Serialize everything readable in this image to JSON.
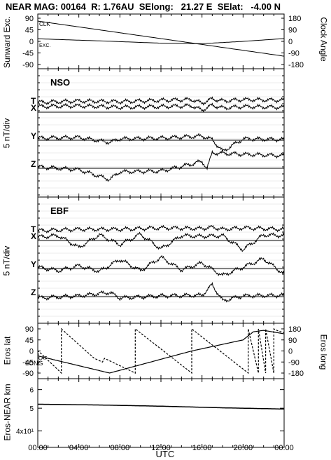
{
  "header": {
    "title": "NEAR MAG: 00164  R: 1.76AU  SElong:   21.27 E  SElat:   -4.00 N"
  },
  "x_axis": {
    "label": "UTC",
    "ticks": [
      "00:00",
      "04:00",
      "08:00",
      "12:00",
      "16:00",
      "20:00",
      "00:00"
    ]
  },
  "chart_data": [
    {
      "type": "line",
      "panel": "angles",
      "ylabel_left": "Sunward Exc.",
      "ylabel_right": "Clock Angle",
      "left_ticks": [
        "90",
        "45",
        "0",
        "-45",
        "-90"
      ],
      "right_ticks": [
        "180",
        "90",
        "0",
        "-90",
        "-180"
      ],
      "ylim_left": [
        -90,
        90
      ],
      "ylim_right": [
        -180,
        180
      ],
      "annotations": [
        "CLK",
        "EXC."
      ],
      "series": [
        {
          "name": "CLK",
          "x": [
            0,
            24
          ],
          "y": [
            158,
            -115
          ]
        },
        {
          "name": "EXC.",
          "x": [
            0,
            6,
            12,
            16,
            20,
            24
          ],
          "y": [
            10,
            2,
            -7,
            -9,
            0,
            11
          ]
        }
      ]
    },
    {
      "type": "line",
      "panel": "NSO",
      "panel_label": "NSO",
      "ylabel": "5 nT/div",
      "grid": true,
      "series": [
        {
          "name": "T",
          "x": [
            0,
            4,
            8,
            12,
            15,
            16,
            17,
            18,
            20,
            24
          ],
          "y": [
            1.4,
            1.6,
            1.5,
            1.7,
            1.8,
            1.3,
            1.9,
            1.6,
            1.8,
            1.7
          ]
        },
        {
          "name": "X",
          "x": [
            0,
            4,
            8,
            12,
            15,
            16,
            17,
            18,
            20,
            24
          ],
          "y": [
            0.8,
            0.9,
            0.7,
            0.8,
            0.9,
            0.3,
            1.0,
            0.6,
            0.8,
            0.7
          ]
        },
        {
          "name": "Y",
          "x": [
            0,
            4,
            7,
            8,
            12,
            16,
            17,
            18,
            20,
            24
          ],
          "y": [
            0.3,
            0.4,
            -0.3,
            0.2,
            0.3,
            0.6,
            0.1,
            -1.6,
            0.2,
            0.1
          ]
        },
        {
          "name": "Z",
          "x": [
            0,
            4,
            7,
            8,
            12,
            15,
            16,
            16.5,
            17,
            20,
            24
          ],
          "y": [
            0.2,
            -0.2,
            -1.6,
            -0.5,
            -0.4,
            0.6,
            1.0,
            0.0,
            2.2,
            2.0,
            1.8
          ]
        }
      ]
    },
    {
      "type": "line",
      "panel": "EBF",
      "panel_label": "EBF",
      "ylabel": "5 nT/div",
      "grid": true,
      "series": [
        {
          "name": "T",
          "x": [
            0,
            4,
            8,
            12,
            16,
            17,
            18,
            20,
            24
          ],
          "y": [
            1.4,
            1.6,
            1.6,
            1.8,
            1.7,
            1.9,
            1.6,
            1.8,
            1.6
          ]
        },
        {
          "name": "X",
          "x": [
            0,
            2,
            4,
            6,
            8,
            10,
            12,
            14,
            16,
            18,
            20,
            22,
            24
          ],
          "y": [
            0.5,
            0.7,
            -1.0,
            0.8,
            -0.6,
            0.9,
            -1.2,
            0.7,
            0.6,
            0.7,
            -1.3,
            0.8,
            0.7
          ]
        },
        {
          "name": "Y",
          "x": [
            0,
            2,
            4,
            6,
            8,
            10,
            12,
            14,
            16,
            18,
            20,
            22,
            24
          ],
          "y": [
            0.2,
            -0.3,
            0.4,
            -0.4,
            1.3,
            -0.3,
            1.6,
            -0.2,
            0.8,
            -1.0,
            0.2,
            1.4,
            -0.8
          ]
        },
        {
          "name": "Z",
          "x": [
            0,
            4,
            7,
            8,
            12,
            16,
            17,
            18,
            20,
            24
          ],
          "y": [
            -0.2,
            0.1,
            0.6,
            -0.2,
            0.1,
            0.2,
            1.7,
            -0.6,
            0.1,
            0.2
          ]
        }
      ]
    },
    {
      "type": "line",
      "panel": "eros",
      "ylabel_left": "Eros lat",
      "ylabel_right": "Eros long",
      "left_ticks": [
        "90",
        "45",
        "0",
        "-45",
        "-90"
      ],
      "right_ticks": [
        "180",
        "90",
        "0",
        "-90",
        "-180"
      ],
      "ylim_left": [
        -90,
        90
      ],
      "ylim_right": [
        -180,
        180
      ],
      "annotations": [
        "LAT",
        "LONG"
      ],
      "series": [
        {
          "name": "LAT",
          "x": [
            0,
            7,
            11,
            15,
            20,
            21,
            22,
            24
          ],
          "y": [
            -20,
            -90,
            -45,
            0,
            45,
            78,
            84,
            70
          ]
        },
        {
          "name": "LONG",
          "x": [
            0,
            0.05,
            2.3,
            2.3,
            5.5,
            6.3,
            6.5,
            9.5,
            9.5,
            15,
            15,
            20.5,
            20.5,
            21.5,
            21.5,
            22.2,
            22.2,
            23,
            23,
            23.5,
            24
          ],
          "y": [
            -180,
            0,
            -180,
            180,
            -60,
            -90,
            -60,
            -180,
            180,
            -180,
            180,
            -180,
            180,
            -180,
            180,
            -180,
            180,
            -180,
            180,
            160,
            150
          ]
        }
      ]
    },
    {
      "type": "line",
      "panel": "distance",
      "ylabel": "Eros-NEAR km",
      "scale": "log",
      "left_ticks": [
        "6",
        "5",
        "4x10¹"
      ],
      "ylim": [
        35,
        65
      ],
      "series": [
        {
          "name": "distance",
          "x": [
            0,
            6,
            12,
            18,
            24
          ],
          "y": [
            52,
            51.6,
            51.0,
            50.2,
            49.6
          ]
        }
      ]
    }
  ]
}
